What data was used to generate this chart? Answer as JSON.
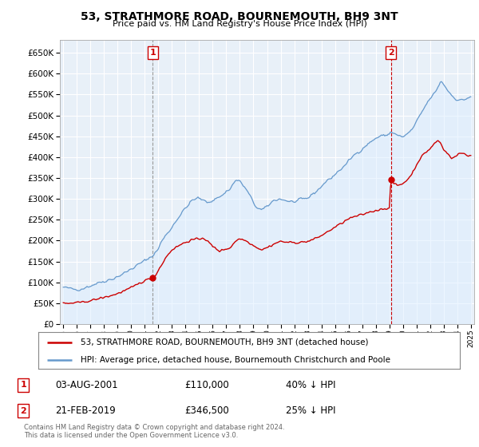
{
  "title": "53, STRATHMORE ROAD, BOURNEMOUTH, BH9 3NT",
  "subtitle": "Price paid vs. HM Land Registry's House Price Index (HPI)",
  "legend_line1": "53, STRATHMORE ROAD, BOURNEMOUTH, BH9 3NT (detached house)",
  "legend_line2": "HPI: Average price, detached house, Bournemouth Christchurch and Poole",
  "footer": "Contains HM Land Registry data © Crown copyright and database right 2024.\nThis data is licensed under the Open Government Licence v3.0.",
  "annotation1_date": "03-AUG-2001",
  "annotation1_price": "£110,000",
  "annotation1_hpi": "40% ↓ HPI",
  "annotation2_date": "21-FEB-2019",
  "annotation2_price": "£346,500",
  "annotation2_hpi": "25% ↓ HPI",
  "hpi_color": "#6699cc",
  "hpi_fill_color": "#ddeeff",
  "price_color": "#cc0000",
  "annotation_color": "#cc0000",
  "vline1_color": "#999999",
  "vline2_color": "#cc0000",
  "ylim": [
    0,
    680000
  ],
  "yticks": [
    0,
    50000,
    100000,
    150000,
    200000,
    250000,
    300000,
    350000,
    400000,
    450000,
    500000,
    550000,
    600000,
    650000
  ],
  "xlim_left": 1994.75,
  "xlim_right": 2025.25,
  "background_color": "#ffffff",
  "chart_bg_color": "#e8f0f8",
  "grid_color": "#ffffff"
}
